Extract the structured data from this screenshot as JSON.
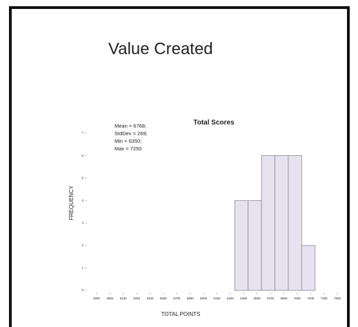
{
  "slide_title": "Value Created",
  "chart_data": {
    "type": "histogram",
    "title": "Total Scores",
    "annotations": [
      "Mean = 6768;",
      "StdDev = 269;",
      "Min = 6350;",
      "Max = 7250"
    ],
    "x_label": "TOTAL POINTS",
    "y_label": "FREQUENCY",
    "bins": [
      6350,
      6500,
      6650,
      6800,
      6950,
      7100,
      7250
    ],
    "counts": [
      4,
      4,
      6,
      6,
      6,
      2
    ],
    "color": "#e6e2ef",
    "edge_color": "#8a8894",
    "xlim": [
      4700,
      7600
    ],
    "xticks": [
      4800,
      4950,
      5100,
      5250,
      5400,
      5550,
      5700,
      5850,
      6000,
      6150,
      6300,
      6450,
      6600,
      6750,
      6900,
      7050,
      7200,
      7350,
      7500
    ],
    "ylim": [
      0,
      7
    ],
    "yticks": [
      0,
      1,
      2,
      3,
      4,
      5,
      6,
      7
    ]
  }
}
